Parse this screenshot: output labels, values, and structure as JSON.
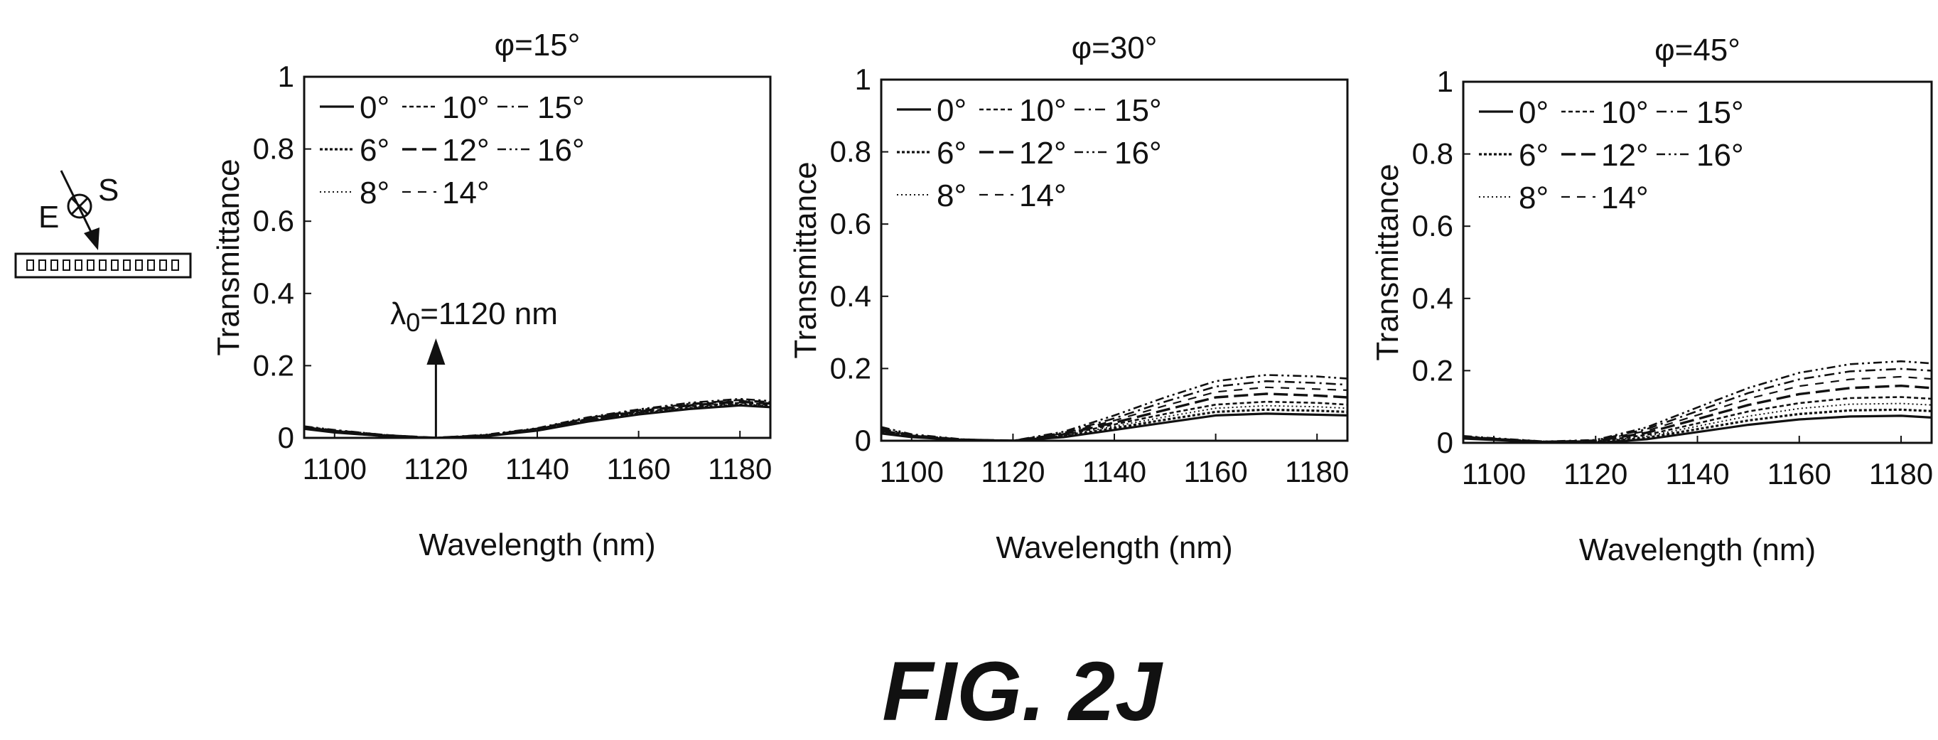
{
  "figure_label": "FIG. 2J",
  "inset": {
    "e_label": "E",
    "s_label": "S"
  },
  "chart_data": [
    {
      "type": "line",
      "title": "φ=15°",
      "xlabel": "Wavelength (nm)",
      "ylabel": "Transmittance",
      "xlim": [
        1094,
        1186
      ],
      "ylim": [
        0,
        1
      ],
      "xticks": [
        1100,
        1120,
        1140,
        1160,
        1180
      ],
      "yticks": [
        0,
        0.2,
        0.4,
        0.6,
        0.8,
        1
      ],
      "ytick_labels": [
        "0",
        "0.2",
        "0.4",
        "0.6",
        "0.8",
        "1"
      ],
      "x": [
        1094,
        1100,
        1110,
        1120,
        1130,
        1140,
        1150,
        1160,
        1170,
        1180,
        1186
      ],
      "legend_ncols": 3,
      "legend_placement": "top-left",
      "annotation": {
        "label_main": "λ",
        "label_sub": "0",
        "label_rest": "=1120 nm",
        "arrow_x": 1120
      },
      "series": [
        {
          "name": "0°",
          "style": "solid",
          "values": [
            0.025,
            0.015,
            0.005,
            0.0,
            0.005,
            0.02,
            0.045,
            0.065,
            0.08,
            0.09,
            0.085
          ]
        },
        {
          "name": "6°",
          "style": "dense-dot",
          "values": [
            0.026,
            0.016,
            0.005,
            0.0,
            0.006,
            0.021,
            0.047,
            0.067,
            0.082,
            0.092,
            0.087
          ]
        },
        {
          "name": "8°",
          "style": "fine-dot",
          "values": [
            0.027,
            0.017,
            0.006,
            0.0,
            0.006,
            0.022,
            0.048,
            0.069,
            0.084,
            0.094,
            0.089
          ]
        },
        {
          "name": "10°",
          "style": "dotted",
          "values": [
            0.028,
            0.018,
            0.006,
            0.0,
            0.007,
            0.023,
            0.05,
            0.071,
            0.087,
            0.097,
            0.092
          ]
        },
        {
          "name": "12°",
          "style": "long-dash",
          "values": [
            0.029,
            0.019,
            0.007,
            0.0,
            0.007,
            0.024,
            0.052,
            0.073,
            0.09,
            0.1,
            0.095
          ]
        },
        {
          "name": "14°",
          "style": "dash",
          "values": [
            0.03,
            0.02,
            0.007,
            0.0,
            0.008,
            0.025,
            0.054,
            0.075,
            0.092,
            0.103,
            0.097
          ]
        },
        {
          "name": "15°",
          "style": "dash-dot",
          "values": [
            0.031,
            0.021,
            0.008,
            0.0,
            0.008,
            0.026,
            0.055,
            0.077,
            0.094,
            0.105,
            0.099
          ]
        },
        {
          "name": "16°",
          "style": "dash-dot-dot",
          "values": [
            0.032,
            0.022,
            0.008,
            0.0,
            0.009,
            0.027,
            0.057,
            0.079,
            0.097,
            0.108,
            0.102
          ]
        }
      ]
    },
    {
      "type": "line",
      "title": "φ=30°",
      "xlabel": "Wavelength (nm)",
      "ylabel": "Transmittance",
      "xlim": [
        1094,
        1186
      ],
      "ylim": [
        0,
        1
      ],
      "xticks": [
        1100,
        1120,
        1140,
        1160,
        1180
      ],
      "yticks": [
        0,
        0.2,
        0.4,
        0.6,
        0.8,
        1
      ],
      "ytick_labels": [
        "0",
        "0.2",
        "0.4",
        "0.6",
        "0.8",
        "1"
      ],
      "x": [
        1094,
        1100,
        1110,
        1120,
        1130,
        1140,
        1150,
        1160,
        1170,
        1180,
        1186
      ],
      "legend_ncols": 3,
      "legend_placement": "top-left",
      "series": [
        {
          "name": "0°",
          "style": "solid",
          "values": [
            0.02,
            0.01,
            0.002,
            0.0,
            0.01,
            0.03,
            0.05,
            0.07,
            0.075,
            0.072,
            0.07
          ]
        },
        {
          "name": "6°",
          "style": "dense-dot",
          "values": [
            0.022,
            0.011,
            0.002,
            0.0,
            0.012,
            0.035,
            0.058,
            0.08,
            0.086,
            0.083,
            0.08
          ]
        },
        {
          "name": "8°",
          "style": "fine-dot",
          "values": [
            0.024,
            0.012,
            0.002,
            0.0,
            0.014,
            0.04,
            0.066,
            0.09,
            0.097,
            0.094,
            0.09
          ]
        },
        {
          "name": "10°",
          "style": "dotted",
          "values": [
            0.026,
            0.013,
            0.002,
            0.0,
            0.016,
            0.045,
            0.074,
            0.1,
            0.108,
            0.105,
            0.1
          ]
        },
        {
          "name": "12°",
          "style": "long-dash",
          "values": [
            0.028,
            0.014,
            0.003,
            0.0,
            0.018,
            0.05,
            0.085,
            0.12,
            0.13,
            0.125,
            0.12
          ]
        },
        {
          "name": "14°",
          "style": "dash",
          "values": [
            0.031,
            0.015,
            0.003,
            0.0,
            0.02,
            0.056,
            0.097,
            0.135,
            0.148,
            0.143,
            0.14
          ]
        },
        {
          "name": "15°",
          "style": "dash-dot",
          "values": [
            0.034,
            0.016,
            0.003,
            0.0,
            0.022,
            0.062,
            0.108,
            0.15,
            0.165,
            0.16,
            0.155
          ]
        },
        {
          "name": "16°",
          "style": "dash-dot-dot",
          "values": [
            0.038,
            0.018,
            0.004,
            0.0,
            0.025,
            0.07,
            0.12,
            0.165,
            0.182,
            0.178,
            0.172
          ]
        }
      ]
    },
    {
      "type": "line",
      "title": "φ=45°",
      "xlabel": "Wavelength (nm)",
      "ylabel": "Transmittance",
      "xlim": [
        1094,
        1186
      ],
      "ylim": [
        0,
        1
      ],
      "xticks": [
        1100,
        1120,
        1140,
        1160,
        1180
      ],
      "yticks": [
        0,
        0.2,
        0.4,
        0.6,
        0.8,
        1
      ],
      "ytick_labels": [
        "0",
        "0.2",
        "0.4",
        "0.6",
        "0.8",
        "1"
      ],
      "x": [
        1094,
        1100,
        1110,
        1120,
        1130,
        1140,
        1150,
        1160,
        1170,
        1180,
        1186
      ],
      "legend_ncols": 3,
      "legend_placement": "top-left",
      "series": [
        {
          "name": "0°",
          "style": "solid",
          "values": [
            0.012,
            0.008,
            0.002,
            0.0,
            0.01,
            0.03,
            0.05,
            0.065,
            0.073,
            0.075,
            0.07
          ]
        },
        {
          "name": "6°",
          "style": "dense-dot",
          "values": [
            0.013,
            0.009,
            0.002,
            0.002,
            0.014,
            0.038,
            0.062,
            0.08,
            0.09,
            0.092,
            0.088
          ]
        },
        {
          "name": "8°",
          "style": "fine-dot",
          "values": [
            0.014,
            0.01,
            0.002,
            0.003,
            0.018,
            0.046,
            0.074,
            0.095,
            0.107,
            0.109,
            0.105
          ]
        },
        {
          "name": "10°",
          "style": "dotted",
          "values": [
            0.015,
            0.01,
            0.003,
            0.004,
            0.022,
            0.054,
            0.087,
            0.11,
            0.124,
            0.127,
            0.122
          ]
        },
        {
          "name": "12°",
          "style": "long-dash",
          "values": [
            0.016,
            0.011,
            0.003,
            0.005,
            0.028,
            0.066,
            0.105,
            0.135,
            0.152,
            0.158,
            0.152
          ]
        },
        {
          "name": "14°",
          "style": "dash",
          "values": [
            0.017,
            0.012,
            0.003,
            0.006,
            0.033,
            0.077,
            0.122,
            0.157,
            0.176,
            0.183,
            0.177
          ]
        },
        {
          "name": "15°",
          "style": "dash-dot",
          "values": [
            0.018,
            0.012,
            0.003,
            0.007,
            0.038,
            0.088,
            0.138,
            0.176,
            0.198,
            0.205,
            0.2
          ]
        },
        {
          "name": "16°",
          "style": "dash-dot-dot",
          "values": [
            0.019,
            0.013,
            0.004,
            0.008,
            0.043,
            0.098,
            0.152,
            0.194,
            0.218,
            0.226,
            0.22
          ]
        }
      ]
    }
  ]
}
